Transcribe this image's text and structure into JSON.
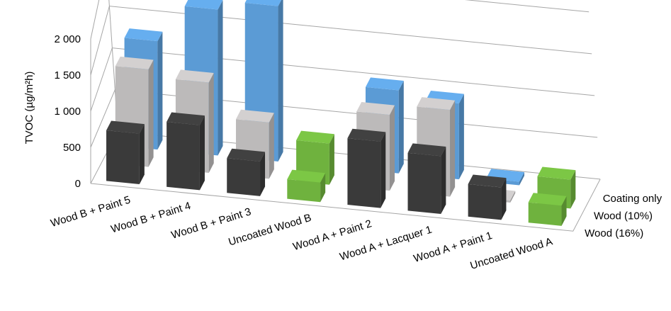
{
  "chart_data": {
    "type": "bar",
    "subtype": "3d-column",
    "title": "",
    "ylabel": "TVOC (µg/m²h)",
    "ylim": [
      0,
      2000
    ],
    "yticks": [
      0,
      500,
      1000,
      1500,
      2000
    ],
    "ytick_labels": [
      "0",
      "500",
      "1 000",
      "1 500",
      "2 000"
    ],
    "grid": true,
    "categories": [
      "Wood B + Paint 5",
      "Wood B + Paint 4",
      "Wood B + Paint 3",
      "Uncoated Wood B",
      "Wood A + Paint 2",
      "Wood A + Lacquer 1",
      "Wood A + Paint 1",
      "Uncoated Wood A"
    ],
    "series": [
      {
        "name": "Coating only",
        "values": [
          1500,
          2020,
          2150,
          null,
          1150,
          1050,
          50,
          null
        ]
      },
      {
        "name": "Wood (10%)",
        "values": [
          1350,
          1250,
          780,
          570,
          1050,
          1200,
          30,
          400
        ]
      },
      {
        "name": "Wood (16%)",
        "values": [
          700,
          900,
          480,
          270,
          920,
          800,
          450,
          280
        ]
      }
    ],
    "colors": {
      "Coating only": "#5b9bd5",
      "Wood (10%)": "#bcbaba",
      "Wood (16%)": "#3a3a3a",
      "Uncoated Wood": "#6fb23e"
    }
  }
}
